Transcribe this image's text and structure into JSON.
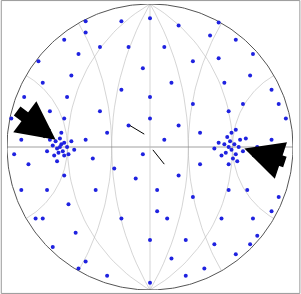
{
  "chart_data": {
    "type": "scatter",
    "x": [
      -0.63,
      -0.62,
      -0.65,
      -0.6,
      -0.66,
      -0.64,
      -0.61,
      -0.68,
      -0.58,
      -0.63,
      -0.6,
      -0.67,
      -0.7,
      -0.55,
      -0.57,
      -0.72,
      -0.62,
      -0.65,
      -0.53,
      -0.74,
      -0.6,
      -0.58,
      -0.55,
      -0.5,
      -0.45,
      -0.7,
      -0.75,
      -0.78,
      -0.6,
      -0.57,
      -0.52,
      -0.45,
      -0.72,
      -0.75,
      -0.68,
      -0.8,
      -0.9,
      -0.95,
      -0.85,
      -0.45,
      -0.3,
      -0.15,
      0.0,
      -0.4,
      -0.25,
      -0.1,
      0.05,
      -0.35,
      -0.2,
      -0.05,
      0.1,
      -0.38,
      -0.2,
      0.0,
      0.15,
      0.57,
      0.55,
      0.59,
      0.53,
      0.6,
      0.56,
      0.62,
      0.52,
      0.58,
      0.54,
      0.63,
      0.5,
      0.61,
      0.65,
      0.48,
      0.57,
      0.55,
      0.67,
      0.45,
      0.6,
      0.55,
      0.52,
      0.48,
      0.42,
      0.65,
      0.7,
      0.72,
      0.55,
      0.5,
      0.45,
      0.38,
      0.68,
      0.72,
      0.75,
      0.75,
      0.85,
      0.92,
      0.8,
      0.35,
      0.2,
      0.35,
      0.2,
      0.3,
      0.15,
      0.3,
      0.12,
      0.0,
      0.2,
      -0.2,
      -0.35,
      0.3,
      0.85,
      0.9,
      -0.88,
      -0.9,
      -0.6,
      0.6,
      0.6,
      -0.3,
      0.0,
      0.25,
      -0.8,
      0.85,
      0.1,
      -0.05,
      0.0,
      0.05,
      -0.15,
      0.25,
      0.95,
      -0.97,
      0.9,
      -0.5,
      0.48,
      -0.45,
      0.7
    ],
    "values": [
      0.0,
      0.02,
      -0.01,
      0.03,
      0.04,
      -0.04,
      -0.03,
      0.01,
      0.0,
      0.06,
      -0.06,
      -0.06,
      0.05,
      0.04,
      -0.05,
      -0.03,
      0.1,
      -0.1,
      -0.02,
      0.08,
      0.2,
      0.35,
      0.5,
      0.65,
      0.8,
      0.25,
      0.45,
      0.6,
      -0.2,
      -0.4,
      -0.6,
      -0.8,
      -0.3,
      -0.5,
      -0.7,
      0.1,
      0.05,
      -0.05,
      -0.12,
      0.05,
      0.1,
      0.15,
      0.2,
      -0.08,
      -0.15,
      -0.22,
      -0.3,
      0.25,
      0.4,
      0.55,
      0.7,
      -0.3,
      -0.5,
      -0.65,
      -0.78,
      -0.02,
      0.0,
      0.02,
      -0.04,
      -0.05,
      0.04,
      0.0,
      0.02,
      -0.08,
      0.07,
      0.05,
      -0.06,
      -0.1,
      -0.03,
      0.03,
      0.1,
      -0.12,
      0.06,
      -0.01,
      0.12,
      0.25,
      0.45,
      0.62,
      0.78,
      0.3,
      0.5,
      0.65,
      -0.3,
      -0.5,
      -0.68,
      -0.85,
      -0.3,
      -0.5,
      -0.62,
      0.0,
      0.05,
      -0.03,
      -0.12,
      0.1,
      0.15,
      -0.12,
      -0.2,
      0.3,
      0.45,
      -0.35,
      -0.5,
      0.9,
      0.85,
      0.88,
      0.7,
      0.6,
      0.4,
      0.3,
      0.35,
      -0.3,
      0.75,
      0.75,
      -0.75,
      -0.9,
      -0.95,
      -0.9,
      -0.5,
      -0.45,
      0.05,
      -0.05,
      0.35,
      -0.45,
      0.7,
      -0.65,
      0.2,
      0.2,
      -0.35,
      -0.85,
      0.87,
      0.88,
      -0.68
    ],
    "color": "#1f22e0",
    "marker": "circle",
    "xlim": [
      -1,
      1
    ],
    "ylim": [
      -1,
      1
    ],
    "tick_labels": false,
    "grid": true
  }
}
